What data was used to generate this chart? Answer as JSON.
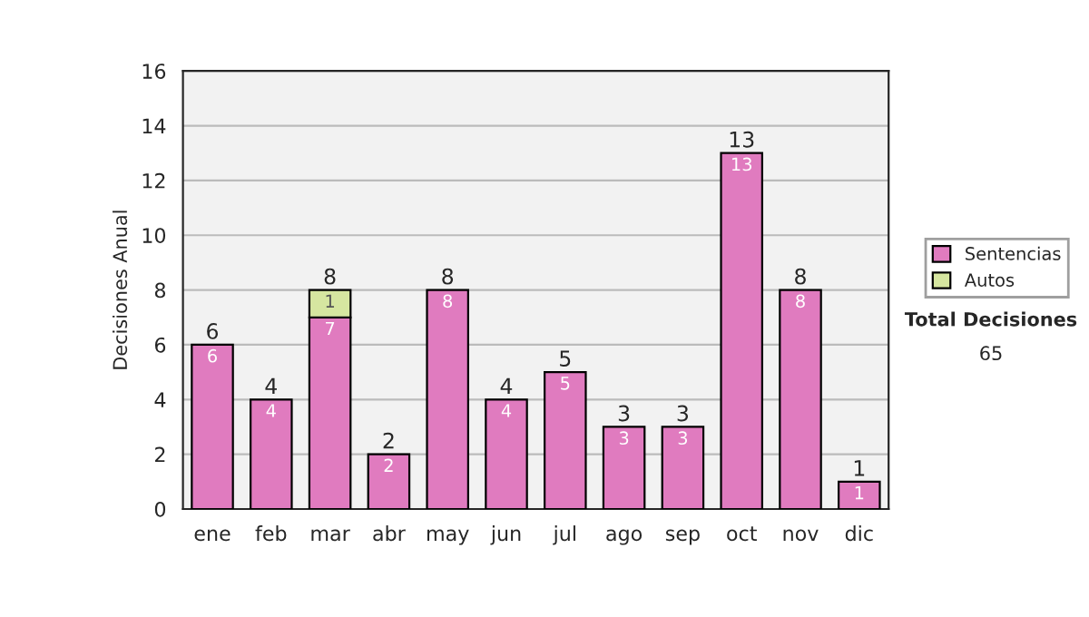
{
  "chart_data": {
    "type": "bar",
    "stacked": true,
    "ylabel": "Decisiones Anual",
    "categories": [
      "ene",
      "feb",
      "mar",
      "abr",
      "may",
      "jun",
      "jul",
      "ago",
      "sep",
      "oct",
      "nov",
      "dic"
    ],
    "series": [
      {
        "name": "Sentencias",
        "color": "#e07bbf",
        "values": [
          6,
          4,
          7,
          2,
          8,
          4,
          5,
          3,
          3,
          13,
          8,
          1
        ],
        "value_labels": [
          "6",
          "4",
          "7",
          "2",
          "8",
          "4",
          "5",
          "3",
          "3",
          "13",
          "8",
          "1"
        ]
      },
      {
        "name": "Autos",
        "color": "#d6e6a0",
        "values": [
          null,
          null,
          1,
          null,
          null,
          null,
          null,
          null,
          null,
          null,
          null,
          null
        ],
        "value_labels": [
          null,
          null,
          "1",
          null,
          null,
          null,
          null,
          null,
          null,
          null,
          null,
          null
        ]
      }
    ],
    "totals": [
      "6",
      "4",
      "8",
      "2",
      "8",
      "4",
      "5",
      "3",
      "3",
      "13",
      "8",
      "1"
    ],
    "ylim": [
      0,
      16
    ],
    "yticks": [
      0,
      2,
      4,
      6,
      8,
      10,
      12,
      14,
      16
    ],
    "grid": "y",
    "legend": "right",
    "annotations": [
      "Total Decisiones",
      "65"
    ]
  }
}
